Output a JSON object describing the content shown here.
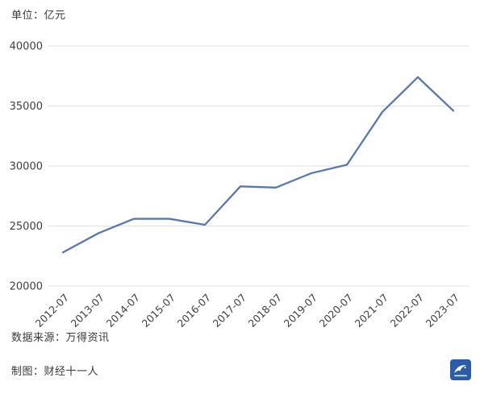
{
  "unit_label": "单位：亿元",
  "source": "数据来源：万得资讯",
  "credit": "制图：财经十一人",
  "logo_name": "caijing-eleven-logo",
  "colors": {
    "line": "#5878b0",
    "grid": "#e1e1e1",
    "text": "#3a3a3a",
    "logo_blue": "#2a5ca8"
  },
  "chart_data": {
    "type": "line",
    "title": "",
    "xlabel": "",
    "ylabel": "",
    "categories": [
      "2012-07",
      "2013-07",
      "2014-07",
      "2015-07",
      "2016-07",
      "2017-07",
      "2018-07",
      "2019-07",
      "2020-07",
      "2021-07",
      "2022-07",
      "2023-07"
    ],
    "values": [
      22800,
      24400,
      25600,
      25600,
      25100,
      28300,
      28200,
      29400,
      30100,
      34500,
      37400,
      34600
    ],
    "ylim": [
      20000,
      40000
    ],
    "yticks": [
      20000,
      25000,
      30000,
      35000,
      40000
    ],
    "grid": true,
    "legend": "none",
    "line_color": "#5878b0",
    "grid_color": "#e1e1e1"
  }
}
